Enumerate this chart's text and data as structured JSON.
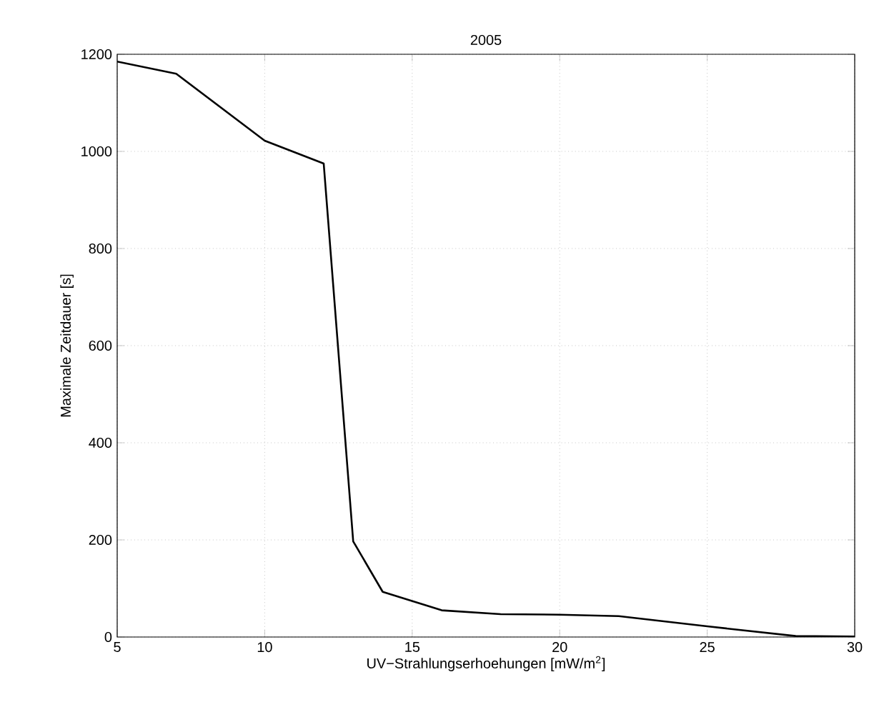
{
  "chart_data": {
    "type": "line",
    "title": "2005",
    "xlabel": "UV−Strahlungserhoehungen [mW/m$^{2}$]",
    "ylabel": "Maximale Zeitdauer [s]",
    "x": [
      5,
      7,
      10,
      12,
      13,
      14,
      16,
      18,
      20,
      22,
      25,
      28,
      30
    ],
    "series": [
      {
        "color": "#000000",
        "values": [
          1185,
          1160,
          1022,
          975,
          197,
          93,
          55,
          47,
          46,
          43,
          22,
          2,
          1
        ]
      }
    ],
    "xlim": [
      5,
      30
    ],
    "ylim": [
      0,
      1200
    ],
    "xticks": [
      5,
      10,
      15,
      20,
      25,
      30
    ],
    "yticks": [
      0,
      200,
      400,
      600,
      800,
      1000,
      1200
    ],
    "grid": true,
    "line_style": "solid",
    "marker": "none"
  }
}
